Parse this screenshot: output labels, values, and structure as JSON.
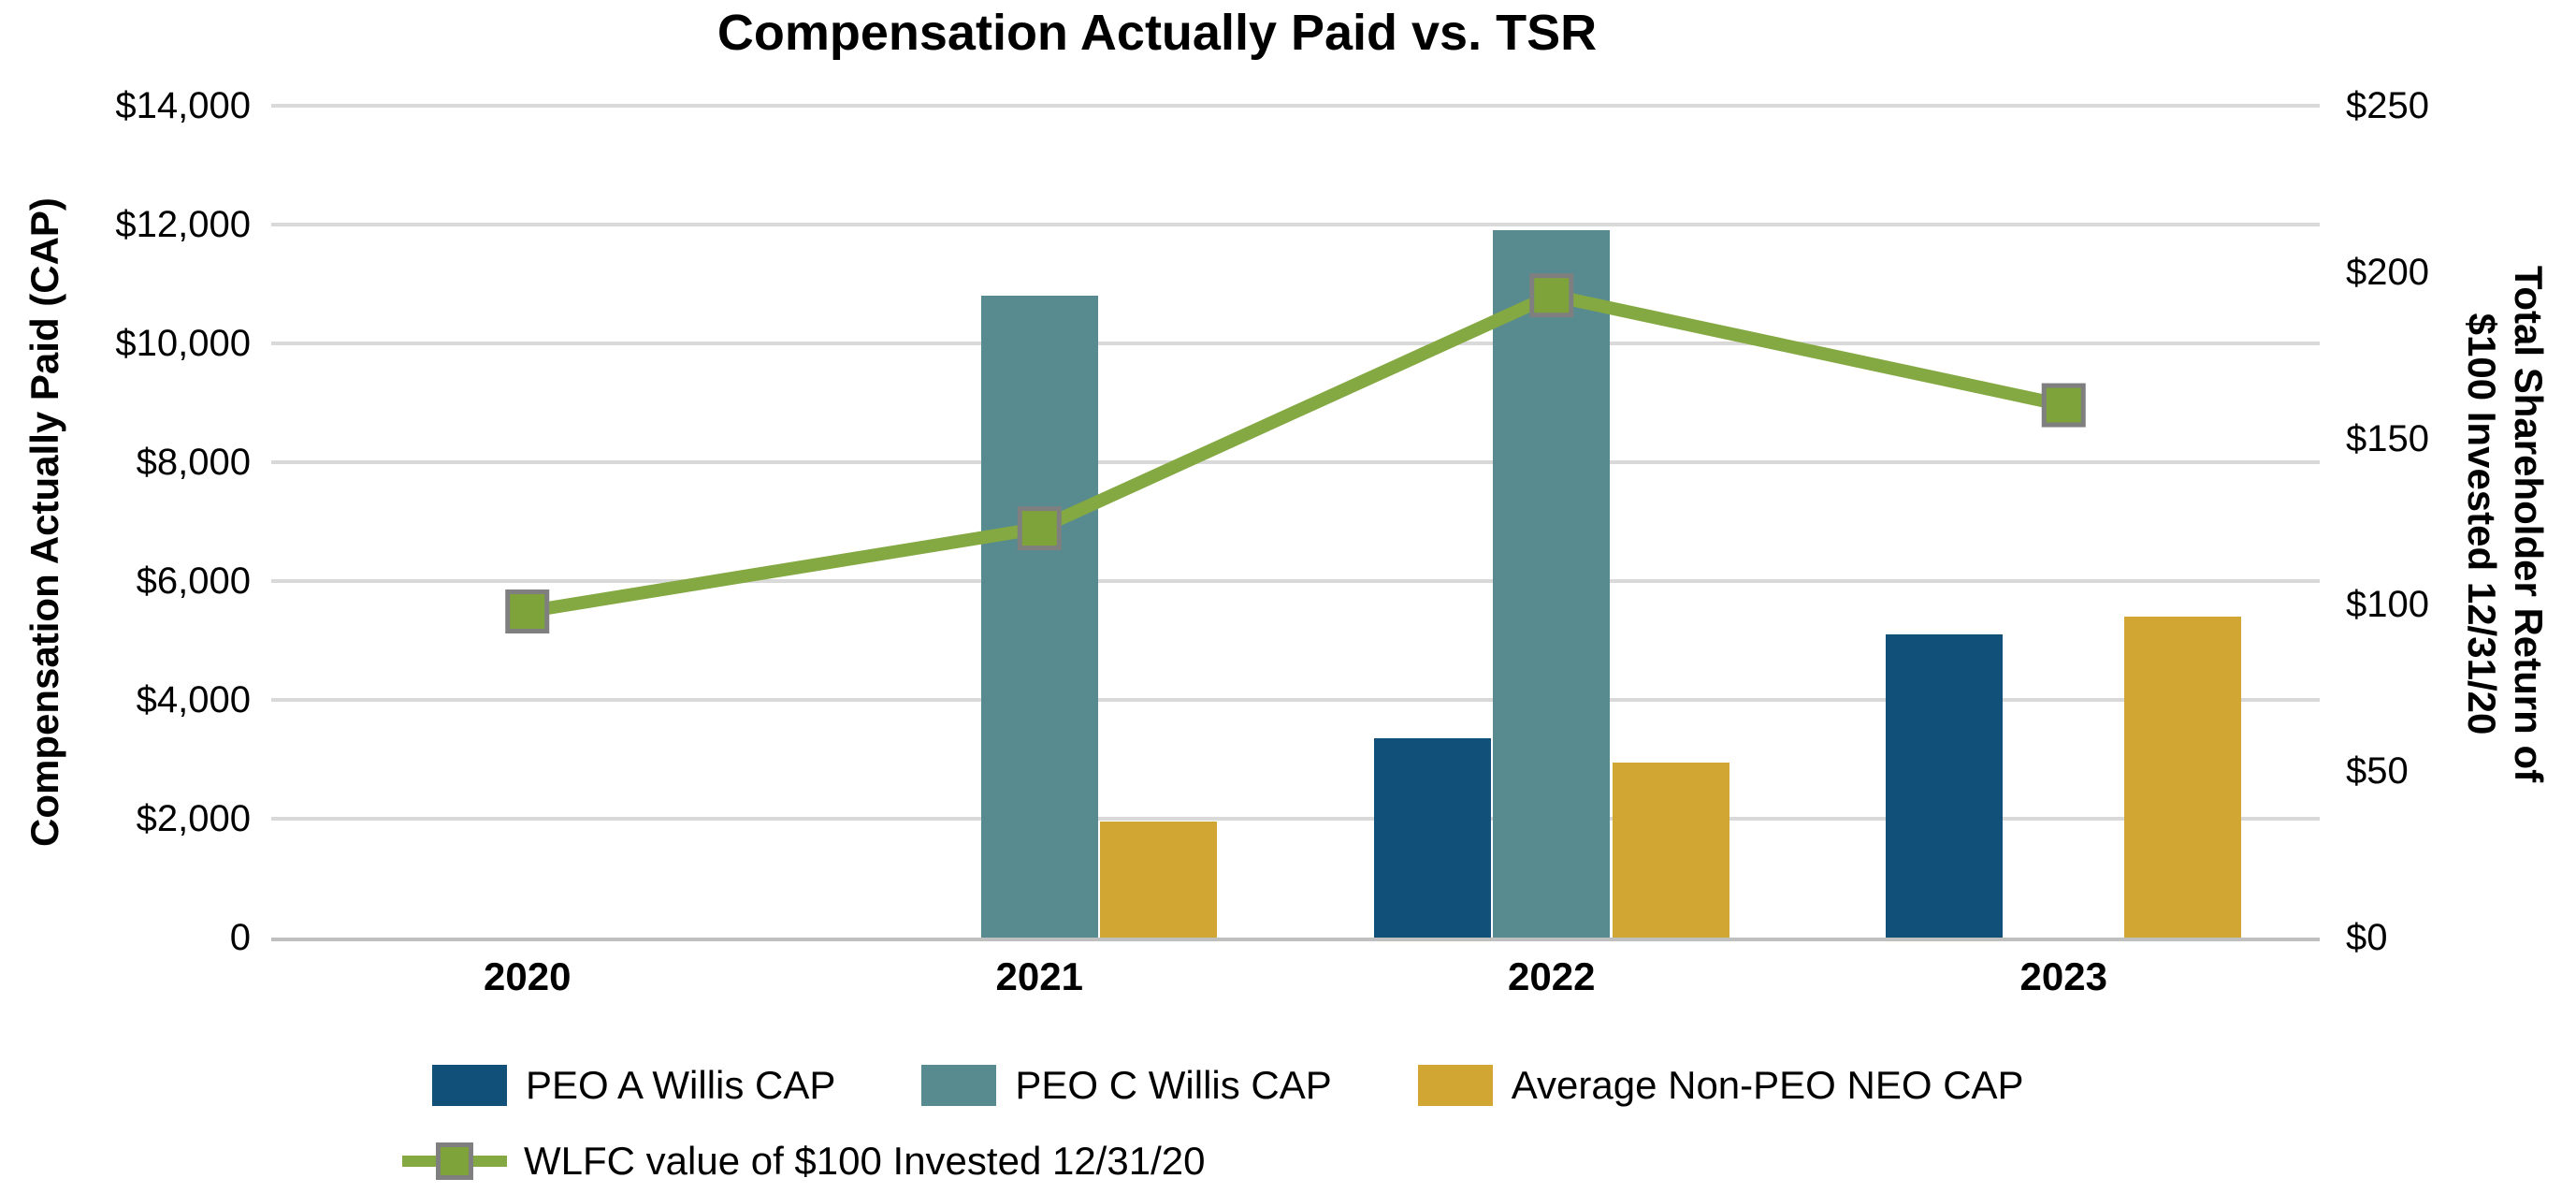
{
  "title": "Compensation Actually Paid vs. TSR",
  "left_axis": {
    "title": "Compensation Actually Paid (CAP)",
    "tick_labels": [
      "$14,000",
      "$12,000",
      "$10,000",
      "$8,000",
      "$6,000",
      "$4,000",
      "$2,000",
      "0"
    ]
  },
  "right_axis": {
    "title_line1": "Total Shareholder Return of",
    "title_line2": "$100 Invested 12/31/20",
    "tick_labels": [
      "$250",
      "$200",
      "$150",
      "$100",
      "$50",
      "$0"
    ]
  },
  "colors": {
    "peo_a_blue": "#115078",
    "peo_c_teal": "#578b90",
    "neo_gold": "#d1a633",
    "tsr_line_green": "#85a942",
    "marker_fill_green": "#7fa33b",
    "marker_border_gray": "#7f7f7f",
    "gridline_gray": "#d9d9d9",
    "axis_line_gray": "#bfbfbf"
  },
  "chart_data": {
    "type": "bar",
    "subtype": "grouped-bars-with-line-overlay",
    "title": "Compensation Actually Paid vs. TSR",
    "categories": [
      "2020",
      "2021",
      "2022",
      "2023"
    ],
    "left_axis_label": "Compensation Actually Paid (CAP)",
    "right_axis_label": "Total Shareholder Return of $100 Invested 12/31/20",
    "left_ylim": [
      0,
      14000
    ],
    "left_ytick_step": 2000,
    "right_ylim": [
      0,
      250
    ],
    "right_ytick_step": 50,
    "grid": true,
    "legend_position": "bottom",
    "series": [
      {
        "name": "PEO A Willis CAP",
        "type": "bar",
        "axis": "left",
        "color": "#115078",
        "values": [
          null,
          null,
          3350,
          5100
        ]
      },
      {
        "name": "PEO C Willis CAP",
        "type": "bar",
        "axis": "left",
        "color": "#578b90",
        "values": [
          null,
          10800,
          11900,
          null
        ]
      },
      {
        "name": "Average Non-PEO NEO CAP",
        "type": "bar",
        "axis": "left",
        "color": "#d1a633",
        "values": [
          null,
          1950,
          2950,
          5400
        ]
      },
      {
        "name": "WLFC value of $100 Invested 12/31/20",
        "type": "line",
        "axis": "right",
        "color": "#85a942",
        "marker": "square",
        "marker_fill": "#7fa33b",
        "marker_border": "#7f7f7f",
        "values": [
          98,
          123,
          193,
          160
        ]
      }
    ]
  }
}
